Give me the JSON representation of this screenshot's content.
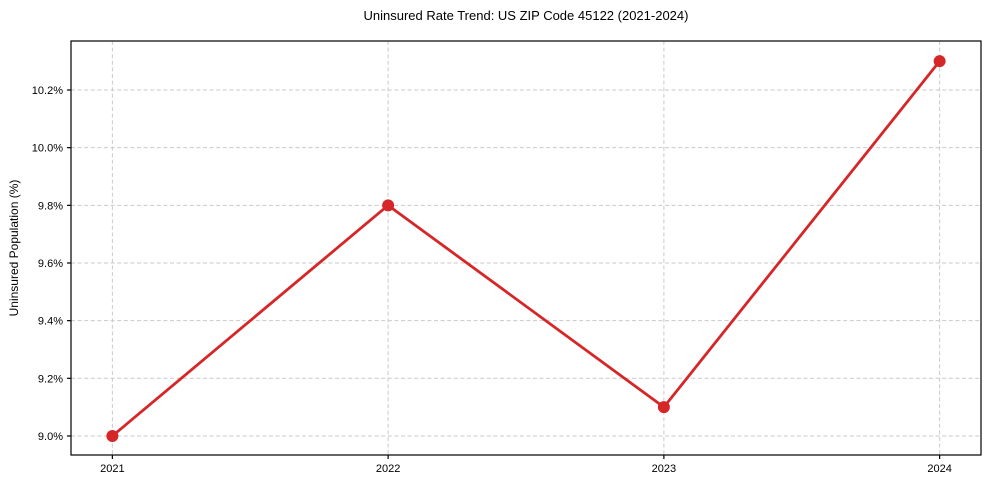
{
  "chart_data": {
    "type": "line",
    "title": "Uninsured Rate Trend: US ZIP Code 45122 (2021-2024)",
    "xlabel": "",
    "ylabel": "Uninsured Population (%)",
    "x": [
      "2021",
      "2022",
      "2023",
      "2024"
    ],
    "series": [
      {
        "name": "Uninsured Rate",
        "values": [
          9.0,
          9.8,
          9.1,
          10.3
        ]
      }
    ],
    "yticks": [
      9.0,
      9.2,
      9.4,
      9.6,
      9.8,
      10.0,
      10.2
    ],
    "ytick_labels": [
      "9.0%",
      "9.2%",
      "9.4%",
      "9.6%",
      "9.8%",
      "10.0%",
      "10.2%"
    ],
    "xlim": [
      2020.85,
      2024.15
    ],
    "ylim": [
      8.934,
      10.37
    ],
    "grid": true,
    "legend": "none",
    "line_color": "#d62728",
    "marker_color": "#d62728",
    "grid_color": "#c9c9c9",
    "spine_color": "#000000",
    "text_color": "#000000",
    "background_color": "#ffffff"
  }
}
